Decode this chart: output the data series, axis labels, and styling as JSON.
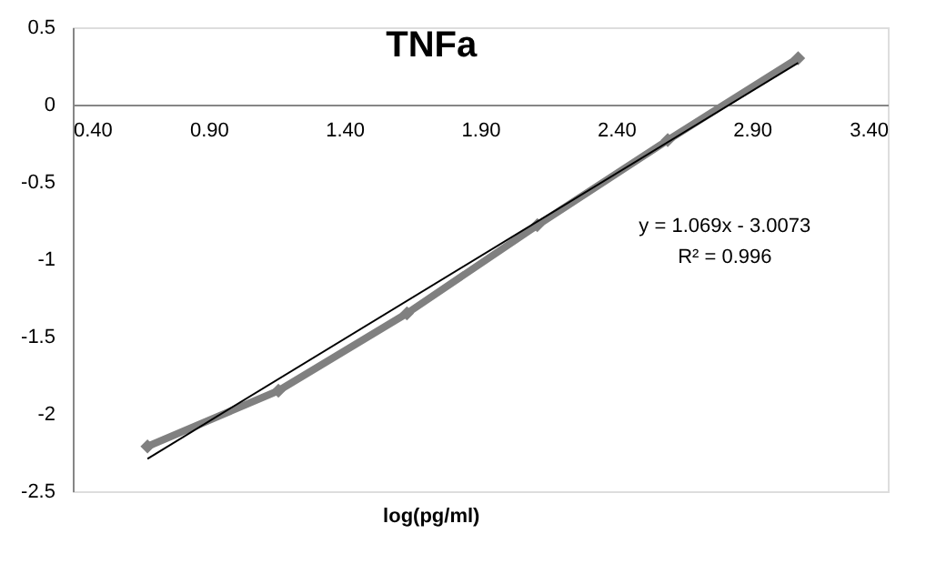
{
  "chart_data": {
    "type": "line",
    "title": "TNFa",
    "xlabel": "log(pg/ml)",
    "annotations": [
      "y = 1.069x - 3.0073",
      "R² = 0.996"
    ],
    "xlim": [
      0.4,
      3.4
    ],
    "xticks": [
      {
        "value": 0.4,
        "label": "0.40"
      },
      {
        "value": 0.9,
        "label": "0.90"
      },
      {
        "value": 1.4,
        "label": "1.40"
      },
      {
        "value": 1.9,
        "label": "1.90"
      },
      {
        "value": 2.4,
        "label": "2.40"
      },
      {
        "value": 2.9,
        "label": "2.90"
      },
      {
        "value": 3.4,
        "label": "3.40"
      }
    ],
    "ylim": [
      -2.5,
      0.5
    ],
    "yticks": [
      -2.5,
      -2,
      -1.5,
      -1,
      -0.5,
      0,
      0.5
    ],
    "series": [
      {
        "color": "#808080",
        "marker": "diamond",
        "x": [
          0.675,
          1.157,
          1.63,
          2.11,
          2.59,
          3.07
        ],
        "values": [
          -2.21,
          -1.85,
          -1.35,
          -0.78,
          -0.23,
          0.3
        ]
      },
      {
        "color": "#000000",
        "marker": "none",
        "x": [
          0.675,
          3.07
        ],
        "values": [
          -2.29,
          0.27
        ]
      }
    ]
  }
}
